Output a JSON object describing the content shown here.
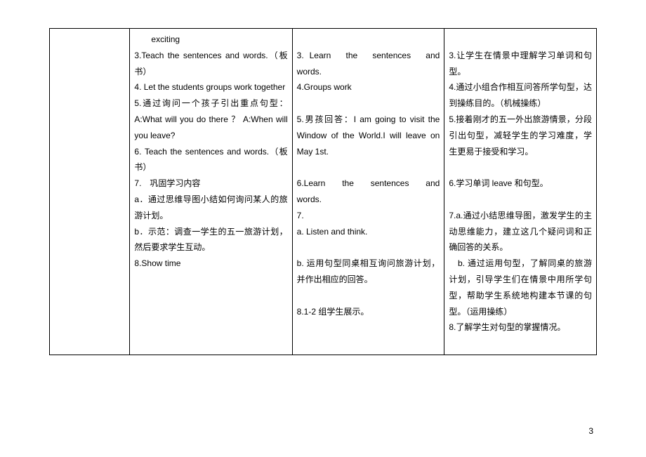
{
  "table": {
    "col1": "",
    "col2_lines": [
      "　　exciting",
      "3.Teach the sentences and words.（板书）",
      "4. Let the students groups work together",
      "5.通过询问一个孩子引出重点句型：A:What will you do there ？ A:When will you leave?",
      "6. Teach the sentences and words.（板书）",
      "7.　巩固学习内容",
      "a．通过思维导图小结如何询问某人的旅游计划。",
      "b．示范：调查一学生的五一旅游计划，然后要求学生互动。",
      "8.Show time"
    ],
    "col3_lines": [
      "　",
      "3. Learn　the　sentences　and　　words.",
      "4.Groups work",
      "　",
      "5.男孩回答：I am going to visit the Window of the World.I will leave on May 1st.",
      "　",
      "6.Learn　the　sentences　and words.",
      "7.",
      "a. Listen and think.",
      "　",
      "b. 运用句型同桌相互询问旅游计划，并作出相应的回答。",
      "　",
      "8.1-2 组学生展示。"
    ],
    "col4_lines": [
      "　",
      "3.让学生在情景中理解学习单词和句型。",
      "4.通过小组合作相互问答所学句型，达到操练目的。（机械操练）",
      "5.接着刚才的五一外出旅游情景，分段引出句型，减轻学生的学习难度，学生更易于接受和学习。",
      "　",
      "6.学习单词 leave 和句型。",
      "　",
      "7.a.通过小结思维导图，激发学生的主动思维能力，建立这几个疑问词和正确回答的关系。",
      "　b. 通过运用句型，了解同桌的旅游计划，引导学生们在情景中用所学句型，帮助学生系统地构建本节课的句型。（运用操练）",
      "8.了解学生对句型的掌握情况。",
      "　"
    ]
  },
  "page_number": "3"
}
